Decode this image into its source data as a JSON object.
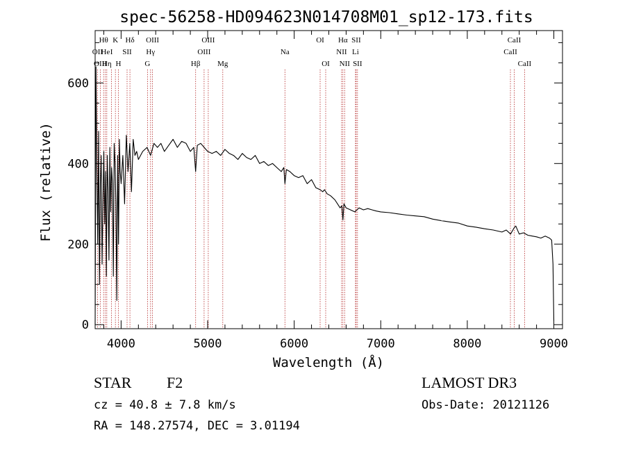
{
  "chart_data": {
    "type": "line",
    "title": "spec-56258-HD094623N014708M01_sp12-173.fits",
    "xlabel": "Wavelength (Å)",
    "ylabel": "Flux (relative)",
    "xlim": [
      3700,
      9100
    ],
    "ylim": [
      -10,
      730
    ],
    "xticks": [
      4000,
      5000,
      6000,
      7000,
      8000,
      9000
    ],
    "xtick_labels": [
      "4000",
      "5000",
      "6000",
      "7000",
      "8000",
      "9000"
    ],
    "yticks": [
      0,
      200,
      400,
      600
    ],
    "ytick_labels": [
      "0",
      "200",
      "400",
      "600"
    ],
    "series": [
      {
        "name": "spectrum",
        "x": [
          3700,
          3710,
          3720,
          3730,
          3740,
          3750,
          3760,
          3770,
          3780,
          3790,
          3800,
          3810,
          3820,
          3830,
          3840,
          3850,
          3860,
          3870,
          3880,
          3890,
          3900,
          3910,
          3920,
          3930,
          3940,
          3950,
          3960,
          3970,
          3980,
          3990,
          4000,
          4020,
          4040,
          4060,
          4080,
          4100,
          4120,
          4140,
          4160,
          4180,
          4200,
          4250,
          4300,
          4340,
          4380,
          4420,
          4460,
          4500,
          4550,
          4600,
          4650,
          4700,
          4750,
          4800,
          4840,
          4861,
          4880,
          4920,
          4960,
          5000,
          5050,
          5100,
          5150,
          5200,
          5250,
          5300,
          5350,
          5400,
          5450,
          5500,
          5550,
          5600,
          5650,
          5700,
          5750,
          5800,
          5850,
          5880,
          5893,
          5910,
          5950,
          6000,
          6050,
          6100,
          6150,
          6200,
          6250,
          6300,
          6330,
          6350,
          6380,
          6420,
          6470,
          6500,
          6530,
          6550,
          6563,
          6575,
          6600,
          6650,
          6700,
          6750,
          6800,
          6850,
          6900,
          6950,
          7000,
          7100,
          7200,
          7300,
          7400,
          7500,
          7600,
          7700,
          7800,
          7900,
          8000,
          8100,
          8200,
          8300,
          8400,
          8450,
          8500,
          8540,
          8560,
          8600,
          8650,
          8700,
          8750,
          8800,
          8850,
          8900,
          8950,
          8975,
          8990,
          9000
        ],
        "y": [
          0,
          640,
          380,
          200,
          480,
          100,
          350,
          420,
          150,
          300,
          430,
          250,
          380,
          120,
          420,
          330,
          160,
          440,
          280,
          390,
          350,
          120,
          450,
          400,
          300,
          60,
          420,
          200,
          460,
          380,
          350,
          420,
          300,
          470,
          380,
          450,
          330,
          460,
          420,
          430,
          410,
          430,
          440,
          420,
          450,
          440,
          450,
          430,
          445,
          460,
          440,
          455,
          450,
          430,
          440,
          380,
          445,
          450,
          440,
          430,
          425,
          430,
          420,
          435,
          425,
          420,
          410,
          425,
          415,
          410,
          420,
          400,
          405,
          395,
          400,
          390,
          380,
          390,
          350,
          385,
          380,
          370,
          365,
          370,
          350,
          360,
          340,
          335,
          330,
          335,
          325,
          320,
          310,
          300,
          290,
          295,
          260,
          300,
          290,
          285,
          280,
          290,
          285,
          288,
          285,
          282,
          280,
          278,
          275,
          272,
          270,
          268,
          262,
          258,
          255,
          252,
          245,
          242,
          238,
          235,
          230,
          235,
          225,
          240,
          245,
          225,
          228,
          222,
          220,
          218,
          215,
          220,
          215,
          210,
          150,
          10
        ]
      }
    ],
    "lines": [
      {
        "label": "Hθ",
        "wl": 3798,
        "row": 0
      },
      {
        "label": "OII",
        "wl": 3727,
        "row": 1
      },
      {
        "label": "OIII",
        "wl": 3760,
        "row": 2
      },
      {
        "label": "He",
        "wl": 3819,
        "row": 1
      },
      {
        "label": "Hη",
        "wl": 3835,
        "row": 2
      },
      {
        "label": "K",
        "wl": 3934,
        "row": 0
      },
      {
        "label": "H",
        "wl": 3969,
        "row": 2
      },
      {
        "label": "I",
        "wl": 3889,
        "row": 1
      },
      {
        "label": "SII",
        "wl": 4069,
        "row": 1
      },
      {
        "label": "Hδ",
        "wl": 4102,
        "row": 0
      },
      {
        "label": "OIII",
        "wl": 4363,
        "row": 0
      },
      {
        "label": "Hγ",
        "wl": 4340,
        "row": 1
      },
      {
        "label": "G",
        "wl": 4305,
        "row": 2
      },
      {
        "label": "Hβ",
        "wl": 4861,
        "row": 2
      },
      {
        "label": "OIII",
        "wl": 5007,
        "row": 0
      },
      {
        "label": "OIII",
        "wl": 4959,
        "row": 1
      },
      {
        "label": "Mg",
        "wl": 5175,
        "row": 2
      },
      {
        "label": "Na",
        "wl": 5893,
        "row": 1
      },
      {
        "label": "OI",
        "wl": 6300,
        "row": 0
      },
      {
        "label": "OI",
        "wl": 6364,
        "row": 2
      },
      {
        "label": "Hα",
        "wl": 6563,
        "row": 0
      },
      {
        "label": "NII",
        "wl": 6548,
        "row": 1
      },
      {
        "label": "NII",
        "wl": 6583,
        "row": 2
      },
      {
        "label": "SII",
        "wl": 6716,
        "row": 0
      },
      {
        "label": "Li",
        "wl": 6708,
        "row": 1
      },
      {
        "label": "SII",
        "wl": 6731,
        "row": 2
      },
      {
        "label": "CaII",
        "wl": 8542,
        "row": 0
      },
      {
        "label": "CaII",
        "wl": 8498,
        "row": 1
      },
      {
        "label": "CaII",
        "wl": 8662,
        "row": 2
      }
    ]
  },
  "info": {
    "class_label": "STAR",
    "subclass": "F2",
    "cz": "cz = 40.8 ± 7.8 km/s",
    "radec": "RA = 148.27574, DEC =    3.01194",
    "survey": "LAMOST DR3",
    "obs_date": "Obs-Date: 20121126"
  },
  "colors": {
    "spectrum": "#000000",
    "line_marker": "#b22222"
  }
}
